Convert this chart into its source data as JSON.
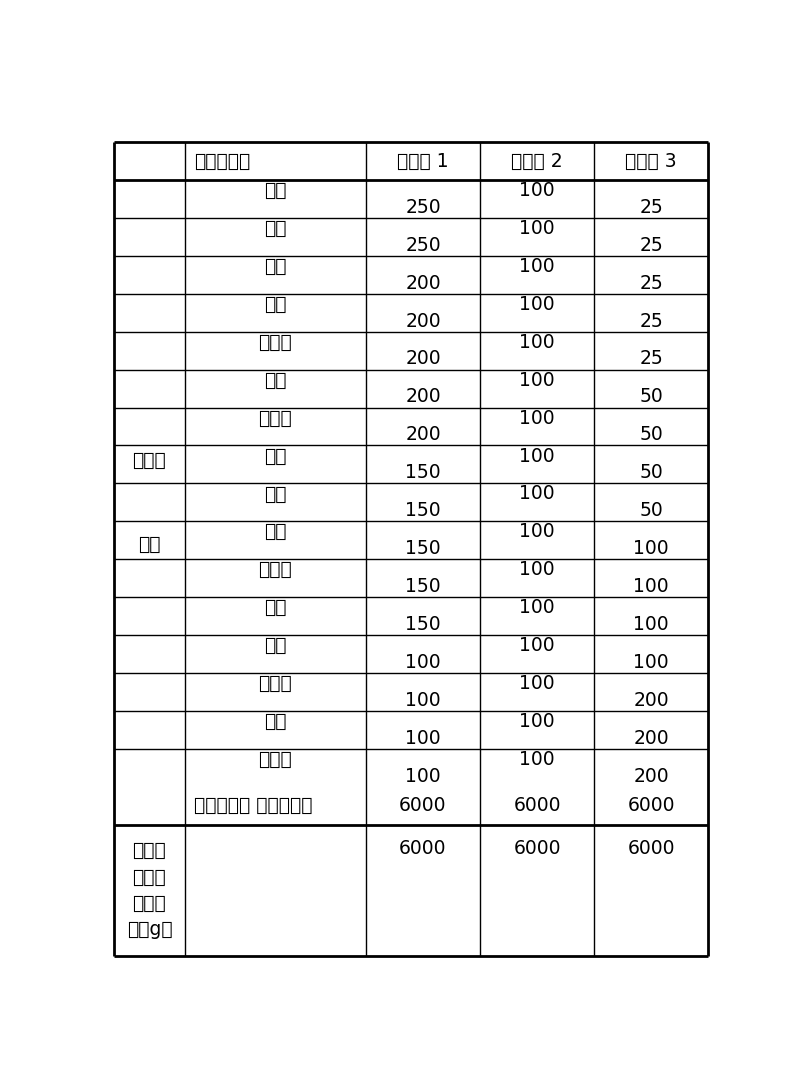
{
  "header_row": [
    "",
    "组分（克）",
    "实施例 1",
    "实施例 2",
    "实施例 3"
  ],
  "ingredients": [
    [
      "当归",
      "250",
      "100",
      "25"
    ],
    [
      "防风",
      "250",
      "100",
      "25"
    ],
    [
      "丹参",
      "200",
      "100",
      "25"
    ],
    [
      "苦参",
      "200",
      "100",
      "25"
    ],
    [
      "地骨皮",
      "200",
      "100",
      "25"
    ],
    [
      "干姜",
      "200",
      "100",
      "50"
    ],
    [
      "骨碎补",
      "200",
      "100",
      "50"
    ],
    [
      "羌活",
      "150",
      "100",
      "50"
    ],
    [
      "木瓜",
      "150",
      "100",
      "50"
    ],
    [
      "川芊",
      "150",
      "100",
      "100"
    ],
    [
      "菟丝子",
      "150",
      "100",
      "100"
    ],
    [
      "天麻",
      "150",
      "100",
      "100"
    ],
    [
      "人参",
      "100",
      "100",
      "100"
    ],
    [
      "透骨草",
      "100",
      "100",
      "200"
    ],
    [
      "白芍",
      "100",
      "100",
      "200"
    ],
    [
      "鸡血藤",
      "100",
      "100",
      "200"
    ]
  ],
  "solvent_label": "提取溶剂： 乙醇水溶液",
  "solvent_values": [
    "6000",
    "6000",
    "6000"
  ],
  "col0_label_chars": [
    "药",
    "的",
    "提",
    "取",
    "液"
  ],
  "col0_label_line1": "药的提",
  "col0_label_line2": "取液",
  "last_row_label_lines": [
    "控制脆",
    "发组合",
    "物总重",
    "量（g）"
  ],
  "last_row_values": [
    "6000",
    "6000",
    "6000"
  ],
  "background_color": "#ffffff",
  "line_color": "#000000",
  "text_color": "#000000",
  "font_size": 13.5
}
